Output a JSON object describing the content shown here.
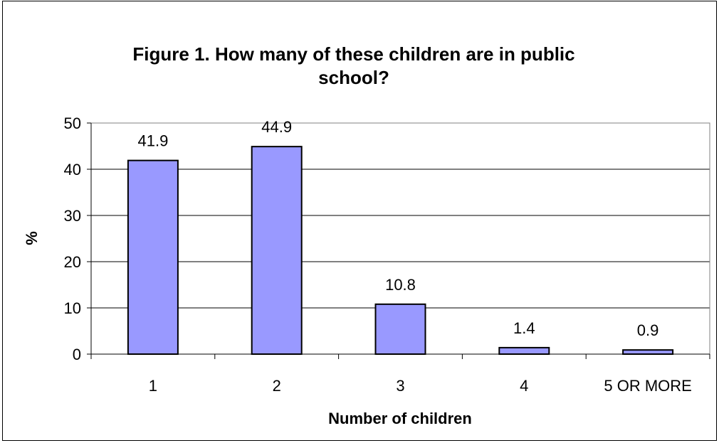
{
  "chart_data": {
    "type": "bar",
    "title_lines": [
      "Figure 1. How many of these children are in public",
      "school?"
    ],
    "xlabel": "Number of children",
    "ylabel": "%",
    "categories": [
      "1",
      "2",
      "3",
      "4",
      "5 OR MORE"
    ],
    "values": [
      41.9,
      44.9,
      10.8,
      1.4,
      0.9
    ],
    "data_labels": [
      "41.9",
      "44.9",
      "10.8",
      "1.4",
      "0.9"
    ],
    "yticks": [
      "0",
      "10",
      "20",
      "30",
      "40",
      "50"
    ],
    "ylim": [
      0,
      50
    ],
    "grid": true,
    "legend": "none",
    "colors": {
      "bar_fill": "#9999ff",
      "bar_stroke": "#000000",
      "grid": "#000000"
    }
  }
}
